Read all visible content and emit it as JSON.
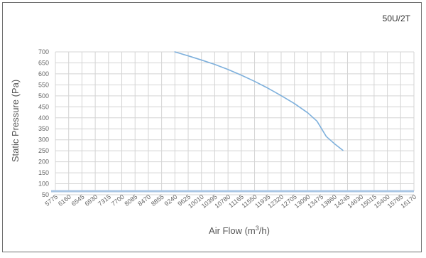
{
  "chart_data": {
    "type": "line",
    "title": "50U/2T",
    "xlabel": "Air Flow (m",
    "xlabel_sup": "3",
    "xlabel_suffix": "/h)",
    "ylabel": "Static Pressure (Pa)",
    "x_ticks": [
      "5775",
      "6160",
      "6545",
      "6930",
      "7315",
      "7700",
      "8085",
      "8470",
      "8855",
      "9240",
      "9625",
      "10010",
      "10395",
      "10780",
      "11165",
      "11550",
      "11935",
      "12320",
      "12705",
      "13090",
      "13475",
      "13860",
      "14245",
      "14630",
      "15015",
      "15400",
      "15785",
      "16170"
    ],
    "y_ticks": [
      50,
      100,
      150,
      200,
      250,
      300,
      350,
      400,
      450,
      500,
      550,
      600,
      650,
      700
    ],
    "xlim": [
      5775,
      16170
    ],
    "ylim": [
      50,
      700
    ],
    "grid": true,
    "colors": {
      "line": "#7eb0dc",
      "grid": "#d4d4d4",
      "baseline": "#a9c6e4"
    },
    "series": [
      {
        "points": [
          {
            "x": 9240,
            "y": 700
          },
          {
            "x": 9625,
            "y": 682
          },
          {
            "x": 10010,
            "y": 663
          },
          {
            "x": 10395,
            "y": 643
          },
          {
            "x": 10780,
            "y": 620
          },
          {
            "x": 11165,
            "y": 594
          },
          {
            "x": 11550,
            "y": 566
          },
          {
            "x": 11935,
            "y": 535
          },
          {
            "x": 12320,
            "y": 501
          },
          {
            "x": 12705,
            "y": 465
          },
          {
            "x": 13090,
            "y": 423
          },
          {
            "x": 13359,
            "y": 385
          },
          {
            "x": 13475,
            "y": 355
          },
          {
            "x": 13629,
            "y": 315
          },
          {
            "x": 13860,
            "y": 283
          },
          {
            "x": 14110,
            "y": 252
          }
        ]
      }
    ]
  }
}
